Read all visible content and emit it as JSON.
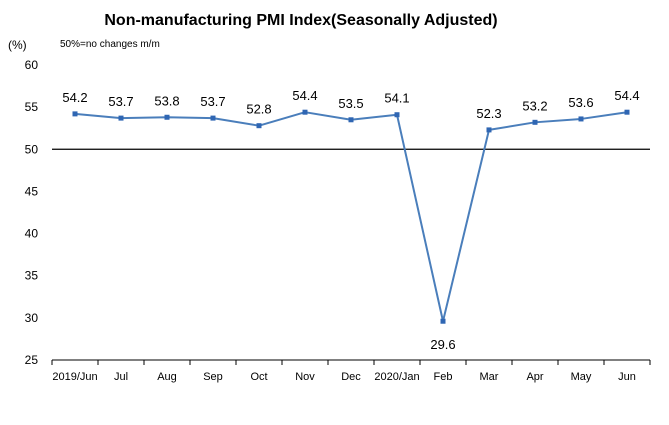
{
  "chart_data": {
    "type": "line",
    "title": "Non-manufacturing PMI Index(Seasonally Adjusted)",
    "ylabel": "(%)",
    "note": "50%=no changes  m/m",
    "categories": [
      "2019/Jun",
      "Jul",
      "Aug",
      "Sep",
      "Oct",
      "Nov",
      "Dec",
      "2020/Jan",
      "Feb",
      "Mar",
      "Apr",
      "May",
      "Jun"
    ],
    "series": [
      {
        "values": [
          54.2,
          53.7,
          53.8,
          53.7,
          52.8,
          54.4,
          53.5,
          54.1,
          29.6,
          52.3,
          53.2,
          53.6,
          54.4
        ]
      }
    ],
    "data_labels": [
      "54.2",
      "53.7",
      "53.8",
      "53.7",
      "52.8",
      "54.4",
      "53.5",
      "54.1",
      "29.6",
      "52.3",
      "53.2",
      "53.6",
      "54.4"
    ],
    "yticks": [
      25,
      30,
      35,
      40,
      45,
      50,
      55,
      60
    ],
    "ytick_labels": [
      "25",
      "30",
      "35",
      "40",
      "45",
      "50",
      "55",
      "60"
    ],
    "ylim": [
      25,
      60
    ],
    "reference_line": 50,
    "grid": false,
    "colors": {
      "line": "#4a7ebb",
      "marker": "#2f66b3",
      "axis": "#000000",
      "reference": "#000000"
    }
  }
}
